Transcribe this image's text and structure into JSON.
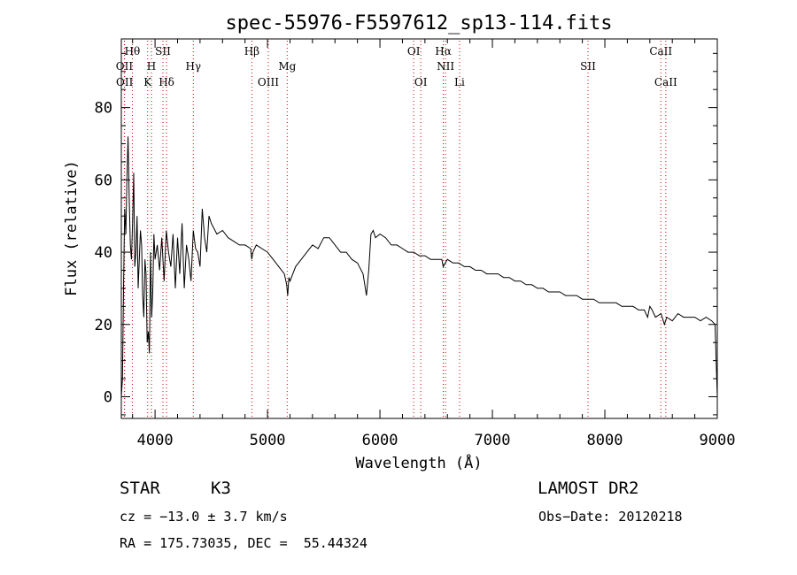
{
  "chart_data": {
    "type": "line",
    "title": "spec-55976-F5597612_sp13-114.fits",
    "xlabel": "Wavelength (Å)",
    "ylabel": "Flux (relative)",
    "xlim": [
      3700,
      9000
    ],
    "ylim": [
      -6,
      99
    ],
    "x_ticks": [
      4000,
      5000,
      6000,
      7000,
      8000,
      9000
    ],
    "y_ticks": [
      0,
      20,
      40,
      60,
      80
    ],
    "grid": false,
    "line_color": "#000000",
    "marker_color": "#cc0000",
    "series": [
      {
        "x": [
          3700,
          3710,
          3720,
          3730,
          3740,
          3750,
          3760,
          3770,
          3780,
          3790,
          3800,
          3810,
          3820,
          3830,
          3840,
          3850,
          3860,
          3870,
          3880,
          3890,
          3900,
          3910,
          3920,
          3930,
          3940,
          3950,
          3960,
          3970,
          3980,
          3990,
          4000,
          4020,
          4040,
          4060,
          4080,
          4100,
          4120,
          4140,
          4160,
          4180,
          4200,
          4220,
          4240,
          4260,
          4280,
          4300,
          4320,
          4340,
          4360,
          4380,
          4400,
          4420,
          4440,
          4460,
          4480,
          4500,
          4550,
          4600,
          4650,
          4700,
          4750,
          4800,
          4850,
          4860,
          4870,
          4900,
          4950,
          5000,
          5050,
          5100,
          5150,
          5170,
          5180,
          5190,
          5200,
          5250,
          5300,
          5350,
          5400,
          5450,
          5500,
          5550,
          5600,
          5650,
          5700,
          5750,
          5800,
          5850,
          5880,
          5900,
          5920,
          5940,
          5960,
          6000,
          6050,
          6100,
          6150,
          6200,
          6250,
          6300,
          6350,
          6400,
          6450,
          6500,
          6550,
          6563,
          6600,
          6650,
          6700,
          6750,
          6800,
          6850,
          6900,
          6950,
          7000,
          7050,
          7100,
          7150,
          7200,
          7250,
          7300,
          7350,
          7400,
          7450,
          7500,
          7550,
          7600,
          7650,
          7700,
          7750,
          7800,
          7850,
          7900,
          7950,
          8000,
          8050,
          8100,
          8150,
          8200,
          8250,
          8300,
          8350,
          8380,
          8400,
          8420,
          8450,
          8500,
          8530,
          8550,
          8600,
          8650,
          8700,
          8750,
          8800,
          8850,
          8900,
          8950,
          8980,
          8990,
          9000
        ],
        "values": [
          0,
          5,
          30,
          52,
          45,
          60,
          72,
          55,
          42,
          38,
          48,
          62,
          36,
          40,
          50,
          30,
          38,
          46,
          42,
          28,
          22,
          38,
          34,
          15,
          18,
          12,
          40,
          22,
          30,
          45,
          38,
          42,
          35,
          44,
          32,
          46,
          40,
          36,
          45,
          30,
          44,
          34,
          48,
          30,
          42,
          38,
          32,
          46,
          41,
          40,
          36,
          52,
          44,
          40,
          50,
          48,
          45,
          46,
          44,
          43,
          42,
          42,
          41,
          38,
          40,
          42,
          41,
          40,
          38,
          36,
          34,
          31,
          28,
          33,
          32,
          36,
          38,
          40,
          42,
          41,
          44,
          44,
          42,
          40,
          40,
          38,
          37,
          34,
          28,
          35,
          45,
          46,
          44,
          45,
          44,
          42,
          42,
          41,
          40,
          40,
          39,
          39,
          38,
          38,
          38,
          36,
          38,
          37,
          37,
          36,
          36,
          35,
          35,
          34,
          34,
          34,
          33,
          33,
          32,
          32,
          31,
          31,
          30,
          30,
          29,
          29,
          29,
          28,
          28,
          28,
          27,
          27,
          27,
          26,
          26,
          26,
          26,
          25,
          25,
          25,
          24,
          24,
          22,
          25,
          24,
          22,
          23,
          20,
          22,
          21,
          23,
          22,
          22,
          22,
          21,
          22,
          21,
          20,
          10,
          0
        ]
      }
    ],
    "line_markers": [
      {
        "name": "Hθ",
        "x": 3798,
        "row": 1
      },
      {
        "name": "OII",
        "x": 3727,
        "row": 2
      },
      {
        "name": "OII",
        "x": 3729,
        "row": 3
      },
      {
        "name": "SII",
        "x": 4070,
        "row": 1
      },
      {
        "name": "H",
        "x": 3968,
        "row": 2
      },
      {
        "name": "K",
        "x": 3934,
        "row": 3
      },
      {
        "name": "Hδ",
        "x": 4102,
        "row": 3
      },
      {
        "name": "Hγ",
        "x": 4340,
        "row": 2
      },
      {
        "name": "Hβ",
        "x": 4861,
        "row": 1
      },
      {
        "name": "Mg",
        "x": 5175,
        "row": 2
      },
      {
        "name": "OIII",
        "x": 5007,
        "row": 3
      },
      {
        "name": "OI",
        "x": 6300,
        "row": 1
      },
      {
        "name": "OI",
        "x": 6363,
        "row": 3
      },
      {
        "name": "Hα",
        "x": 6563,
        "row": 1
      },
      {
        "name": "NII",
        "x": 6583,
        "row": 2
      },
      {
        "name": "Li",
        "x": 6708,
        "row": 3
      },
      {
        "name": "SII",
        "x": 7850,
        "row": 2
      },
      {
        "name": "CaII",
        "x": 8498,
        "row": 1
      },
      {
        "name": "CaII",
        "x": 8542,
        "row": 3
      }
    ]
  },
  "info": {
    "object_type": "STAR",
    "subclass": "K3",
    "survey": "LAMOST DR2",
    "cz": "cz = −13.0 ± 3.7 km/s",
    "obs_date": "Obs−Date: 20120218",
    "coords": "RA = 175.73035, DEC =  55.44324"
  }
}
